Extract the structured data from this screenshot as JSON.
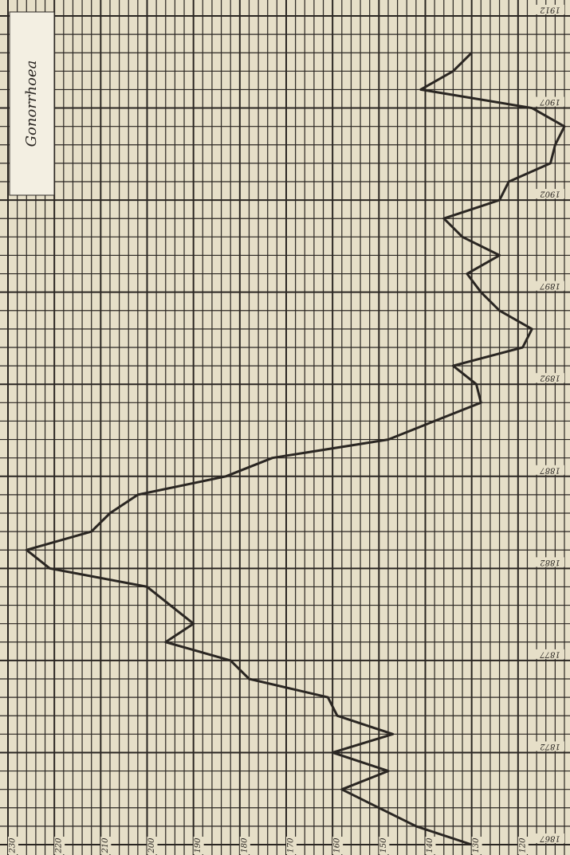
{
  "chart_data": {
    "type": "line",
    "title": "Gonorrhoea",
    "rotated": true,
    "y_inverted": true,
    "grid": true,
    "color": "#2a2622",
    "x": [
      1867,
      1868,
      1869,
      1870,
      1871,
      1872,
      1873,
      1874,
      1875,
      1876,
      1877,
      1878,
      1879,
      1880,
      1881,
      1882,
      1883,
      1884,
      1885,
      1886,
      1887,
      1888,
      1889,
      1890,
      1891,
      1892,
      1893,
      1894,
      1895,
      1896,
      1897,
      1898,
      1899,
      1900,
      1901,
      1902,
      1903,
      1904,
      1905,
      1906,
      1907,
      1908,
      1909,
      1910
    ],
    "values": [
      130,
      142,
      150,
      158,
      148,
      160,
      147,
      159,
      161,
      178,
      182,
      196,
      190,
      195,
      200,
      221,
      226,
      212,
      208,
      202,
      183,
      173,
      148,
      138,
      128,
      129,
      134,
      119,
      117,
      124,
      128,
      131,
      124,
      132,
      136,
      124,
      122,
      113,
      112,
      110,
      117,
      141,
      134,
      130
    ],
    "xlim": [
      1867,
      1912
    ],
    "xticks": [
      1867,
      1872,
      1877,
      1882,
      1887,
      1892,
      1897,
      1902,
      1907,
      1912
    ],
    "ylim": [
      110,
      230
    ],
    "yticks": [
      120,
      130,
      140,
      150,
      160,
      170,
      180,
      190,
      200,
      210,
      220,
      230
    ]
  }
}
